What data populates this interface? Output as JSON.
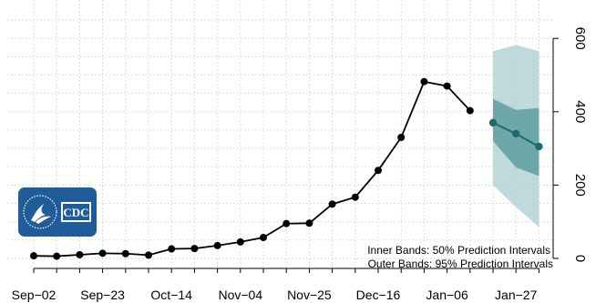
{
  "chart_data": {
    "type": "line",
    "title": "",
    "xlabel": "",
    "ylabel": "",
    "ylim": [
      -20,
      690
    ],
    "y_axis_position": "right",
    "y_ticks": [
      0,
      200,
      400,
      600
    ],
    "grid": true,
    "x_tick_labels": [
      "Sep−02",
      "Sep−23",
      "Oct−14",
      "Nov−04",
      "Nov−25",
      "Dec−16",
      "Jan−06",
      "Jan−27"
    ],
    "x": [
      "Sep-02",
      "Sep-09",
      "Sep-16",
      "Sep-23",
      "Sep-30",
      "Oct-07",
      "Oct-14",
      "Oct-21",
      "Oct-28",
      "Nov-04",
      "Nov-11",
      "Nov-18",
      "Nov-25",
      "Dec-02",
      "Dec-09",
      "Dec-16",
      "Dec-23",
      "Dec-30",
      "Jan-06",
      "Jan-13"
    ],
    "observed": [
      7,
      6,
      10,
      14,
      13,
      9,
      26,
      27,
      35,
      45,
      57,
      95,
      96,
      148,
      167,
      240,
      330,
      482,
      470,
      403
    ],
    "forecast": {
      "x": [
        "Jan-20",
        "Jan-27",
        "Feb-03"
      ],
      "median": [
        370,
        340,
        305
      ],
      "pi50_lower": [
        320,
        248,
        225
      ],
      "pi50_upper": [
        435,
        405,
        410
      ],
      "pi95_lower": [
        200,
        140,
        85
      ],
      "pi95_upper": [
        565,
        582,
        565
      ]
    },
    "colors": {
      "observed": "#000000",
      "forecast": "#1b6b6e",
      "band_outer": "#b3d3d6",
      "band_inner": "#5f9ea0"
    },
    "annotations": [
      "Inner Bands: 50% Prediction Intervals",
      "Outer Bands: 95% Prediction Intervals"
    ],
    "logo": {
      "text": "CDC",
      "icon": "hhs-eagle-logo",
      "color": "#1f5c99"
    }
  }
}
